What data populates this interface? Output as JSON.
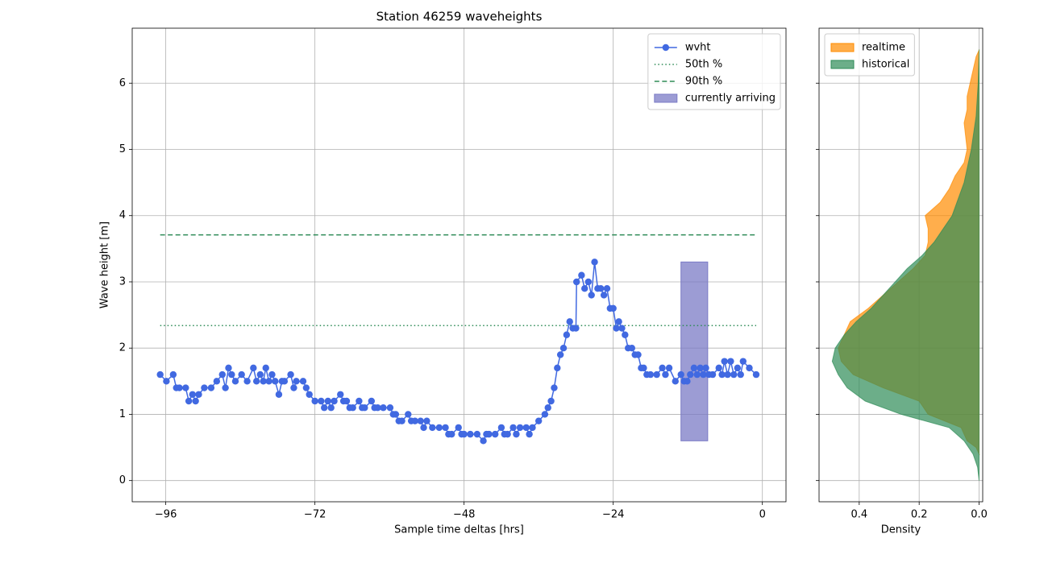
{
  "chart_data": [
    {
      "type": "line",
      "title": "Station 46259 waveheights",
      "xlabel": "Sample time deltas [hrs]",
      "ylabel": "Wave height [m]",
      "x": [
        -96.9,
        -95.9,
        -94.8,
        -94.3,
        -93.8,
        -92.8,
        -92.3,
        -91.7,
        -91.2,
        -90.7,
        -89.8,
        -88.7,
        -87.8,
        -86.9,
        -86.4,
        -85.9,
        -85.4,
        -84.8,
        -83.8,
        -82.9,
        -81.9,
        -81.4,
        -80.8,
        -80.3,
        -79.9,
        -79.4,
        -78.9,
        -78.4,
        -77.8,
        -77.3,
        -76.9,
        -75.9,
        -75.4,
        -75.0,
        -73.9,
        -73.4,
        -72.9,
        -72.0,
        -71.0,
        -70.5,
        -69.9,
        -69.4,
        -68.9,
        -67.9,
        -67.4,
        -66.9,
        -66.4,
        -65.9,
        -64.9,
        -64.4,
        -64.0,
        -62.9,
        -62.4,
        -61.9,
        -61.0,
        -59.9,
        -59.4,
        -59.0,
        -58.5,
        -58.0,
        -57.0,
        -56.5,
        -55.9,
        -55.0,
        -54.5,
        -54.0,
        -53.1,
        -52.0,
        -51.0,
        -50.5,
        -50.0,
        -48.9,
        -48.4,
        -48.0,
        -47.0,
        -45.9,
        -44.9,
        -44.4,
        -44.0,
        -43.0,
        -42.0,
        -41.5,
        -41.0,
        -40.1,
        -39.6,
        -39.0,
        -38.0,
        -37.5,
        -37.0,
        -36.0,
        -35.0,
        -34.5,
        -34.0,
        -33.5,
        -33.0,
        -32.5,
        -32.0,
        -31.5,
        -31.0,
        -30.5,
        -30.0,
        -29.9,
        -29.1,
        -28.6,
        -28.0,
        -27.5,
        -27.0,
        -26.5,
        -26.0,
        -25.5,
        -25.0,
        -24.5,
        -24.0,
        -23.5,
        -23.1,
        -22.6,
        -22.1,
        -21.6,
        -21.0,
        -20.5,
        -20.0,
        -19.5,
        -19.1,
        -18.6,
        -18.0,
        -17.0,
        -16.1,
        -15.6,
        -15.0,
        -14.0,
        -13.1,
        -12.6,
        -12.1,
        -11.6,
        -11.0,
        -10.5,
        -10.0,
        -9.5,
        -9.1,
        -8.6,
        -8.0,
        -7.0,
        -6.5,
        -6.1,
        -5.6,
        -5.1,
        -4.6,
        -4.0,
        -3.5,
        -3.1,
        -2.1,
        -1.0
      ],
      "series": [
        {
          "name": "wvht",
          "color": "#4169e1",
          "values": [
            1.6,
            1.5,
            1.6,
            1.4,
            1.4,
            1.4,
            1.2,
            1.3,
            1.2,
            1.3,
            1.4,
            1.4,
            1.5,
            1.6,
            1.4,
            1.7,
            1.6,
            1.5,
            1.6,
            1.5,
            1.7,
            1.5,
            1.6,
            1.5,
            1.7,
            1.5,
            1.6,
            1.5,
            1.3,
            1.5,
            1.5,
            1.6,
            1.4,
            1.5,
            1.5,
            1.4,
            1.3,
            1.2,
            1.2,
            1.1,
            1.2,
            1.1,
            1.2,
            1.3,
            1.2,
            1.2,
            1.1,
            1.1,
            1.2,
            1.1,
            1.1,
            1.2,
            1.1,
            1.1,
            1.1,
            1.1,
            1.0,
            1.0,
            0.9,
            0.9,
            1.0,
            0.9,
            0.9,
            0.9,
            0.8,
            0.9,
            0.8,
            0.8,
            0.8,
            0.7,
            0.7,
            0.8,
            0.7,
            0.7,
            0.7,
            0.7,
            0.6,
            0.7,
            0.7,
            0.7,
            0.8,
            0.7,
            0.7,
            0.8,
            0.7,
            0.8,
            0.8,
            0.7,
            0.8,
            0.9,
            1.0,
            1.1,
            1.2,
            1.4,
            1.7,
            1.9,
            2.0,
            2.2,
            2.4,
            2.3,
            2.3,
            3.0,
            3.1,
            2.9,
            3.0,
            2.8,
            3.3,
            2.9,
            2.9,
            2.8,
            2.9,
            2.6,
            2.6,
            2.3,
            2.4,
            2.3,
            2.2,
            2.0,
            2.0,
            1.9,
            1.9,
            1.7,
            1.7,
            1.6,
            1.6,
            1.6,
            1.7,
            1.6,
            1.7,
            1.5,
            1.6,
            1.5,
            1.5,
            1.6,
            1.7,
            1.6,
            1.7,
            1.6,
            1.7,
            1.6,
            1.6,
            1.7,
            1.6,
            1.8,
            1.6,
            1.8,
            1.6,
            1.7,
            1.6,
            1.8,
            1.7,
            1.6
          ]
        }
      ],
      "hlines": [
        {
          "name": "50th %",
          "value": 2.34,
          "color": "#2e8b57",
          "style": "dotted"
        },
        {
          "name": "90th %",
          "value": 3.71,
          "color": "#2e8b57",
          "style": "dashed"
        }
      ],
      "spans": [
        {
          "name": "currently arriving",
          "xrange": [
            -13.1,
            -8.8
          ],
          "yrange": [
            0.6,
            3.3
          ],
          "color": "#7b7bc6"
        }
      ],
      "xlim": [
        -101.4,
        3.8
      ],
      "xticks": [
        {
          "value": -96,
          "label": "−96"
        },
        {
          "value": -72,
          "label": "−72"
        },
        {
          "value": -48,
          "label": "−48"
        },
        {
          "value": -24,
          "label": "−24"
        },
        0
      ],
      "ylim": [
        -0.32,
        6.83
      ],
      "yticks": [
        0,
        1,
        2,
        3,
        4,
        5,
        6
      ],
      "grid": true,
      "legend": "upper right"
    },
    {
      "type": "area",
      "xlabel": "Density",
      "sharey": true,
      "series": [
        {
          "name": "realtime",
          "color": "#ff8c00",
          "heights": [
            0.4,
            0.5,
            0.6,
            0.8,
            1.0,
            1.2,
            1.4,
            1.6,
            1.8,
            2.0,
            2.2,
            2.4,
            2.6,
            2.8,
            3.0,
            3.2,
            3.4,
            3.6,
            3.8,
            4.0,
            4.2,
            4.4,
            4.6,
            4.8,
            5.0,
            5.2,
            5.4,
            5.6,
            5.8,
            6.0,
            6.2,
            6.4,
            6.5
          ],
          "values": [
            0,
            0.01,
            0.04,
            0.06,
            0.17,
            0.2,
            0.32,
            0.42,
            0.46,
            0.47,
            0.45,
            0.43,
            0.37,
            0.32,
            0.27,
            0.22,
            0.18,
            0.17,
            0.17,
            0.18,
            0.13,
            0.1,
            0.08,
            0.05,
            0.04,
            0.045,
            0.05,
            0.04,
            0.04,
            0.03,
            0.02,
            0.01,
            0
          ]
        },
        {
          "name": "historical",
          "color": "#2e8b57",
          "heights": [
            0,
            0.2,
            0.4,
            0.6,
            0.8,
            1.0,
            1.2,
            1.4,
            1.6,
            1.8,
            2.0,
            2.2,
            2.4,
            2.6,
            2.8,
            3.0,
            3.2,
            3.4,
            3.6,
            3.8,
            4.0,
            4.5,
            5.0,
            5.5,
            6.0,
            6.5
          ],
          "values": [
            0,
            0.005,
            0.02,
            0.05,
            0.1,
            0.26,
            0.38,
            0.44,
            0.47,
            0.49,
            0.48,
            0.45,
            0.41,
            0.36,
            0.32,
            0.28,
            0.24,
            0.19,
            0.15,
            0.12,
            0.09,
            0.05,
            0.026,
            0.01,
            0.003,
            0
          ]
        }
      ],
      "xlim": [
        0.534,
        -0.012
      ],
      "xticks": [
        0.4,
        0.2,
        {
          "value": 0,
          "label": "0.0"
        }
      ],
      "grid": true,
      "legend": "upper left"
    }
  ]
}
